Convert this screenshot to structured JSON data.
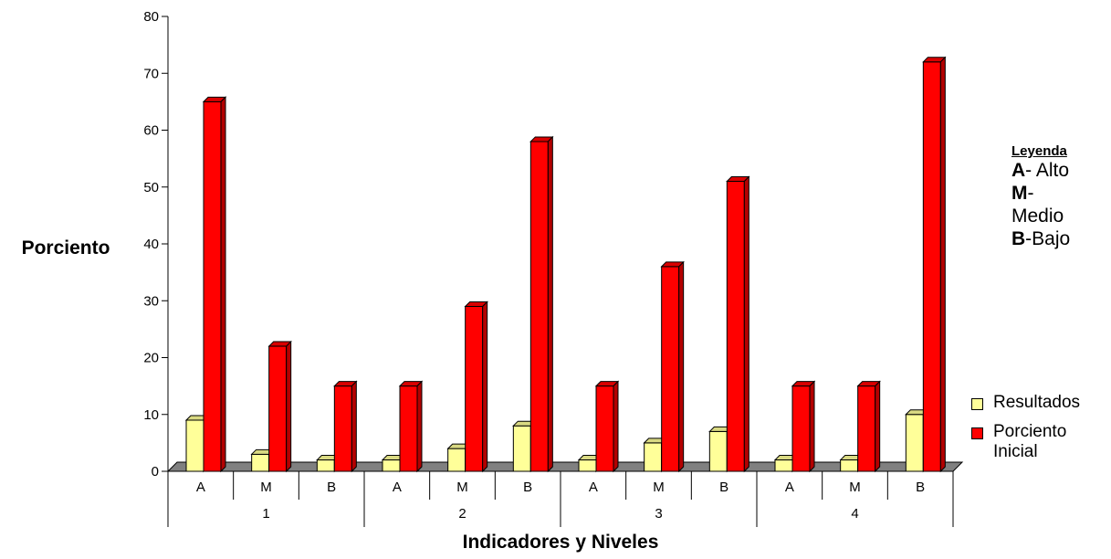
{
  "chart_data": {
    "type": "bar",
    "title": "",
    "xlabel": "Indicadores y Niveles",
    "ylabel": "Porciento",
    "ylim": [
      0,
      80
    ],
    "yticks": [
      0,
      10,
      20,
      30,
      40,
      50,
      60,
      70,
      80
    ],
    "groups": [
      "1",
      "2",
      "3",
      "4"
    ],
    "categories": [
      "A",
      "M",
      "B",
      "A",
      "M",
      "B",
      "A",
      "M",
      "B",
      "A",
      "M",
      "B"
    ],
    "series": [
      {
        "name": "Resultados",
        "color": "#ffff99",
        "values": [
          9,
          3,
          2,
          2,
          4,
          8,
          2,
          5,
          7,
          2,
          2,
          10
        ]
      },
      {
        "name": "Porciento Inicial",
        "color": "#ff0000",
        "values": [
          65,
          22,
          15,
          15,
          29,
          58,
          15,
          36,
          51,
          15,
          15,
          72
        ]
      }
    ],
    "legend_position": "right",
    "grid": false
  },
  "legend": {
    "title": "Leyenda",
    "lines": [
      {
        "key": "A",
        "text": "- Alto"
      },
      {
        "key": "M",
        "text": "-"
      },
      {
        "key": "",
        "text": "Medio"
      },
      {
        "key": "B",
        "text": "-Bajo"
      }
    ]
  }
}
